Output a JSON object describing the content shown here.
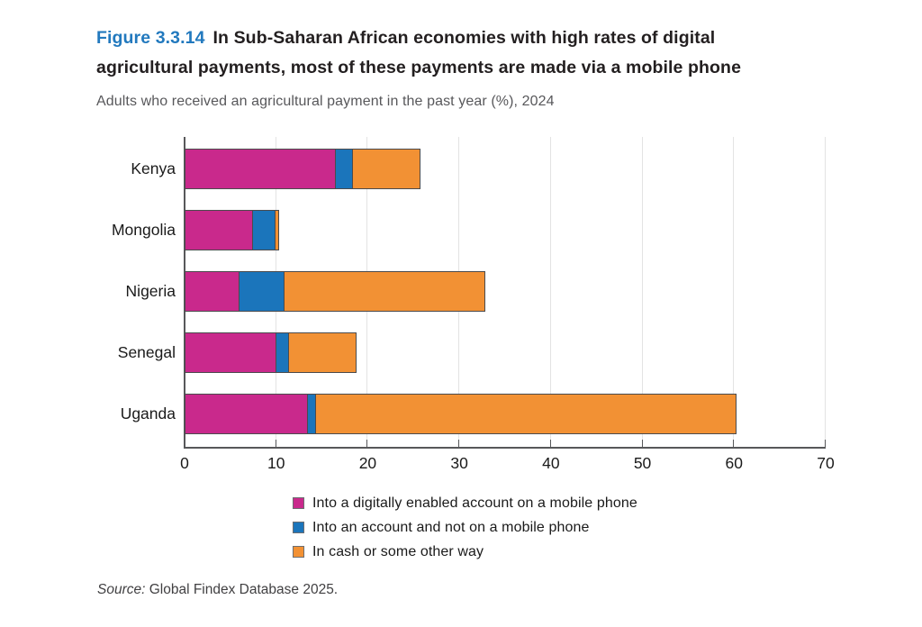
{
  "figure": {
    "number": "Figure 3.3.14",
    "title_line1": "In Sub-Saharan African economies with high rates of digital",
    "title_line2": "agricultural payments, most of these payments are made via a mobile phone",
    "subtitle": "Adults who received an agricultural payment in the past year (%), 2024",
    "source_label": "Source:",
    "source_text": " Global Findex Database 2025."
  },
  "colors": {
    "figure_number": "#2279be",
    "title_text": "#231f20",
    "subtitle_text": "#58585b",
    "axis": "#57585a",
    "gridline": "#e3e3e3",
    "bar_outline": "#4b4b4d",
    "series_mobile": "#c9298c",
    "series_account": "#1b75bb",
    "series_cash": "#f29134"
  },
  "chart_data": {
    "type": "bar",
    "orientation": "horizontal",
    "stacked": true,
    "title": "In Sub-Saharan African economies with high rates of digital agricultural payments, most of these payments are made via a mobile phone",
    "subtitle": "Adults who received an agricultural payment in the past year (%), 2024",
    "categories": [
      "Kenya",
      "Mongolia",
      "Nigeria",
      "Senegal",
      "Uganda"
    ],
    "series": [
      {
        "name": "Into a digitally enabled account on a mobile phone",
        "color": "#c9298c",
        "values": [
          16.5,
          7.5,
          6,
          10,
          13.5
        ]
      },
      {
        "name": "Into an account and not on a mobile phone",
        "color": "#1b75bb",
        "values": [
          2,
          2.5,
          5,
          1.5,
          1
        ]
      },
      {
        "name": "In cash or some other way",
        "color": "#f29134",
        "values": [
          7.5,
          0.5,
          22,
          7.5,
          46
        ]
      }
    ],
    "totals": [
      26,
      10.5,
      33,
      19,
      60.5
    ],
    "xlabel": "",
    "ylabel": "",
    "xlim": [
      0,
      70
    ],
    "xticks": [
      0,
      10,
      20,
      30,
      40,
      50,
      60,
      70
    ],
    "grid": true,
    "legend_position": "bottom-left"
  }
}
